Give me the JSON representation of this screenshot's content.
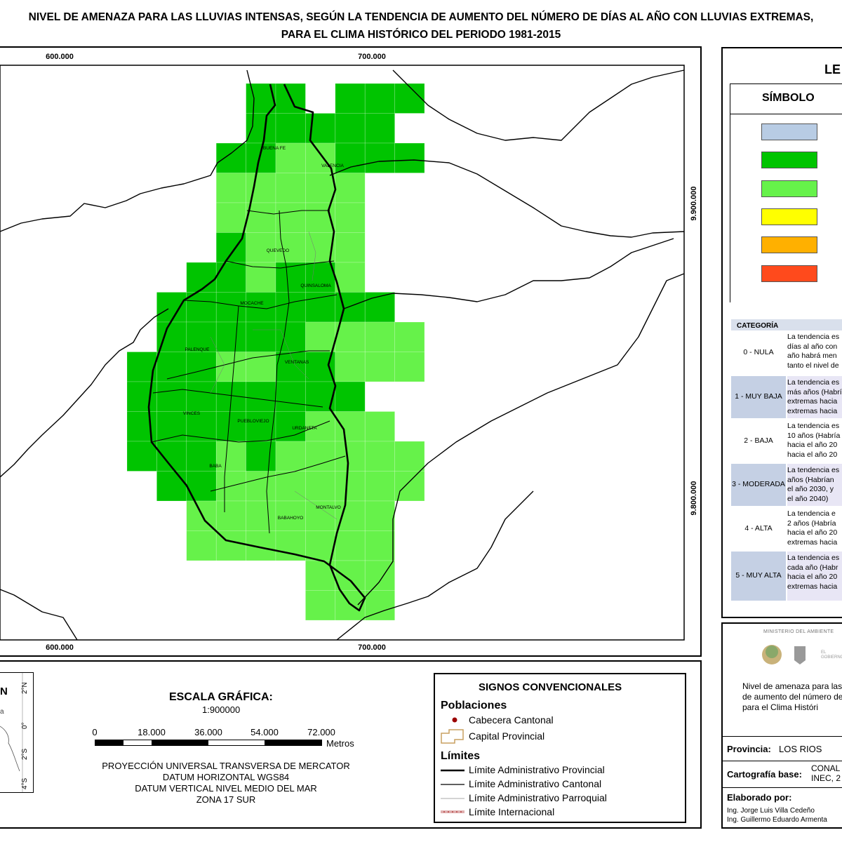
{
  "title": {
    "line1": "NIVEL DE AMENAZA PARA LAS LLUVIAS INTENSAS, SEGÚN LA TENDENCIA DE AUMENTO DEL NÚMERO DE DÍAS AL AÑO CON LLUVIAS EXTREMAS,",
    "line2": "PARA EL CLIMA HISTÓRICO DEL PERIODO 1981-2015"
  },
  "map": {
    "x_labels_top": [
      "600.000",
      "700.000"
    ],
    "x_labels_bottom": [
      "600.000",
      "700.000"
    ],
    "y_labels": [
      "9.900.000",
      "9.800.000"
    ],
    "places": [
      "BUENA FE",
      "VALENCIA",
      "QUEVEDO",
      "QUINSALOMA",
      "MOCACHE",
      "PALENQUE",
      "VENTANAS",
      "VINCES",
      "PUEBLOVIEJO",
      "URDANETA",
      "BABA",
      "BABAHOYO",
      "MONTALVO"
    ]
  },
  "legend": {
    "title": "LE",
    "symbol_header": "SÍMBOLO",
    "symbol_colors": [
      "#b8cce4",
      "#00c400",
      "#66f24a",
      "#ffff00",
      "#ffb000",
      "#ff4a1c"
    ],
    "category_header": "CATEGORÍA",
    "rows": [
      {
        "category": "0 - NULA",
        "description": [
          "La tendencia es",
          "días al año con",
          "año habrá men",
          "tanto el nivel de"
        ]
      },
      {
        "category": "1 - MUY BAJA",
        "description": [
          "La tendencia es",
          "más años (Habrí",
          "extremas hacia",
          "extremas hacia"
        ]
      },
      {
        "category": "2 - BAJA",
        "description": [
          "La tendencia es",
          "10 años (Habría",
          "hacia el año 20",
          "hacia el año 20"
        ]
      },
      {
        "category": "3 - MODERADA",
        "description": [
          "La tendencia es",
          "años (Habrían",
          "el año 2030, y",
          "el año 2040)"
        ]
      },
      {
        "category": "4 - ALTA",
        "description": [
          "La tendencia e",
          "2 años (Habría",
          "hacia el año 20",
          "extremas hacia"
        ]
      },
      {
        "category": "5 - MUY ALTA",
        "description": [
          "La tendencia es",
          "cada año (Habr",
          "hacia el año 20",
          "extremas hacia"
        ]
      }
    ]
  },
  "inset": {
    "title": "N",
    "label": "a",
    "lat_labels": [
      "2°N",
      "0°",
      "2°S",
      "4°S"
    ]
  },
  "scale": {
    "title": "ESCALA GRÁFICA:",
    "ratio": "1:900000",
    "ticks": [
      "0",
      "18.000",
      "36.000",
      "54.000",
      "72.000"
    ],
    "unit": "Metros",
    "projection": [
      "PROYECCIÓN UNIVERSAL TRANSVERSA DE MERCATOR",
      "DATUM HORIZONTAL WGS84",
      "DATUM VERTICAL NIVEL MEDIO DEL MAR",
      "ZONA 17 SUR"
    ]
  },
  "signs": {
    "title": "SIGNOS CONVENCIONALES",
    "populations_header": "Poblaciones",
    "populations": [
      "Cabecera Cantonal",
      "Capital Provincial"
    ],
    "limits_header": "Límites",
    "limits": [
      "Límite Administrativo Provincial",
      "Límite Administrativo Cantonal",
      "Límite Administrativo Parroquial",
      "Límite Internacional"
    ]
  },
  "info": {
    "ministry": "MINISTERIO DEL AMBIENTE",
    "description": [
      "Nivel de amenaza para las L",
      "de aumento del número de",
      "para el Clima Históri"
    ],
    "province_label": "Provincia:",
    "province": "LOS RIOS",
    "cartography_label": "Cartografía base:",
    "cartography": [
      "CONAL",
      "INEC, 2"
    ],
    "author_label": "Elaborado por:",
    "authors": [
      "Ing. Jorge Luis Villa Cedeño",
      "Ing. Guillermo Eduardo Armenta"
    ]
  }
}
